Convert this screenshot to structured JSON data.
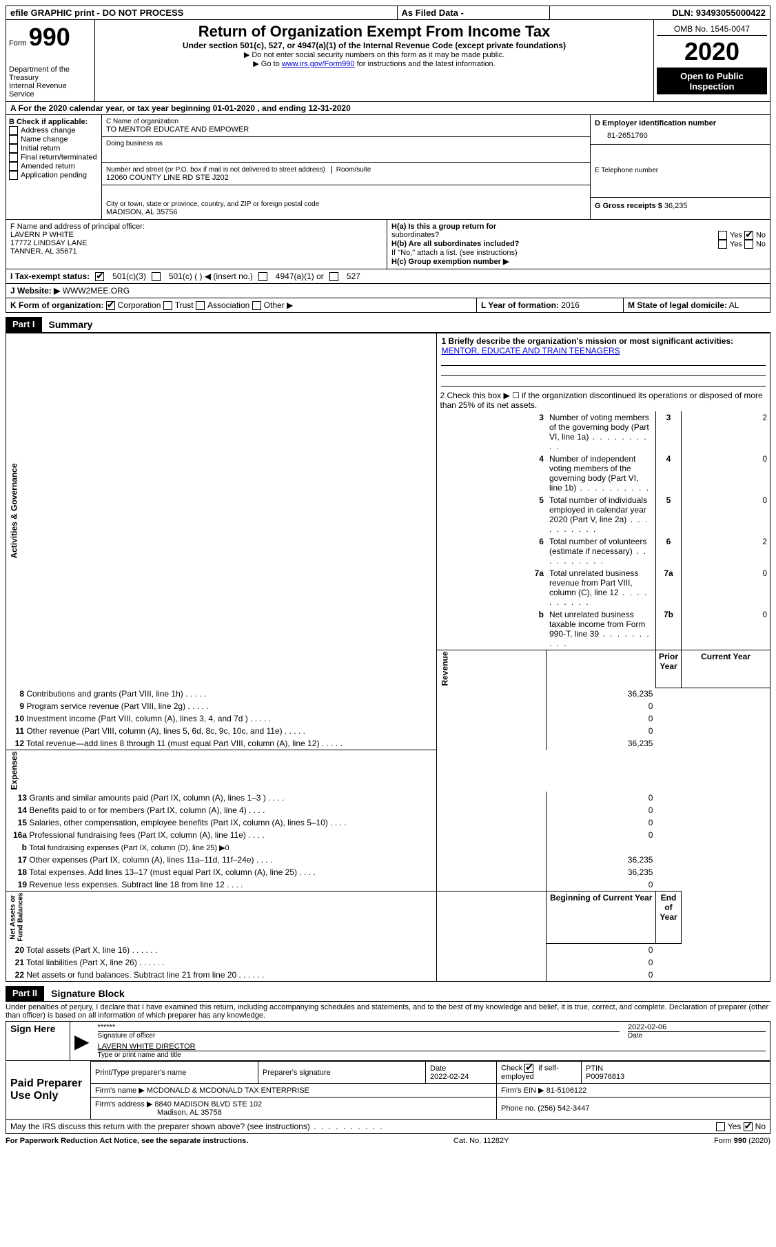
{
  "topbar": {
    "efile": "efile GRAPHIC print - DO NOT PROCESS",
    "asfiled": "As Filed Data -",
    "dln_label": "DLN:",
    "dln": "93493055000422"
  },
  "header": {
    "form_word": "Form",
    "form_num": "990",
    "dept1": "Department of the Treasury",
    "dept2": "Internal Revenue Service",
    "title": "Return of Organization Exempt From Income Tax",
    "subtitle": "Under section 501(c), 527, or 4947(a)(1) of the Internal Revenue Code (except private foundations)",
    "instr1": "▶ Do not enter social security numbers on this form as it may be made public.",
    "instr2a": "▶ Go to ",
    "instr2_link": "www.irs.gov/Form990",
    "instr2b": " for instructions and the latest information.",
    "omb": "OMB No. 1545-0047",
    "year": "2020",
    "open1": "Open to Public",
    "open2": "Inspection"
  },
  "rowA": "A   For the 2020 calendar year, or tax year beginning 01-01-2020   , and ending 12-31-2020",
  "boxB": {
    "title": "B Check if applicable:",
    "opts": [
      "Address change",
      "Name change",
      "Initial return",
      "Final return/terminated",
      "Amended return",
      "Application pending"
    ]
  },
  "boxC": {
    "lbl_name": "C Name of organization",
    "org": "TO MENTOR EDUCATE AND EMPOWER",
    "lbl_dba": "Doing business as",
    "lbl_street": "Number and street (or P.O. box if mail is not delivered to street address)",
    "lbl_room": "Room/suite",
    "street": "12060 COUNTY LINE RD STE J202",
    "lbl_city": "City or town, state or province, country, and ZIP or foreign postal code",
    "city": "MADISON, AL  35756"
  },
  "boxD": {
    "lbl": "D Employer identification number",
    "val": "81-2651760"
  },
  "boxE": {
    "lbl": "E Telephone number"
  },
  "boxG": {
    "lbl": "G Gross receipts $",
    "val": "36,235"
  },
  "boxF": {
    "lbl": "F   Name and address of principal officer:",
    "name": "LAVERN P WHITE",
    "addr1": "17772 LINDSAY LANE",
    "addr2": "TANNER, AL  35671"
  },
  "boxH": {
    "a_lbl": "H(a)  Is this a group return for",
    "a_lbl2": "subordinates?",
    "b_lbl": "H(b)  Are all subordinates included?",
    "b_note": "If \"No,\" attach a list. (see instructions)",
    "c_lbl": "H(c)  Group exemption number ▶",
    "yes": "Yes",
    "no": "No"
  },
  "rowI": {
    "lbl": "I   Tax-exempt status:",
    "o1": "501(c)(3)",
    "o2": "501(c) (   ) ◀ (insert no.)",
    "o3": "4947(a)(1) or",
    "o4": "527"
  },
  "rowJ": {
    "lbl": "J   Website: ▶",
    "val": "WWW2MEE.ORG"
  },
  "rowK": {
    "lbl": "K Form of organization:",
    "o1": "Corporation",
    "o2": "Trust",
    "o3": "Association",
    "o4": "Other ▶",
    "L_lbl": "L Year of formation:",
    "L_val": "2016",
    "M_lbl": "M State of legal domicile:",
    "M_val": "AL"
  },
  "partI": {
    "lbl": "Part I",
    "title": "Summary"
  },
  "summary": {
    "vtabs": {
      "gov": "Activities & Governance",
      "rev": "Revenue",
      "exp": "Expenses",
      "net": "Net Assets or\nFund Balances"
    },
    "line1_lbl": "1  Briefly describe the organization's mission or most significant activities:",
    "line1_val": "MENTOR, EDUCATE AND TRAIN TEENAGERS",
    "line2": "2   Check this box ▶ ☐  if the organization discontinued its operations or disposed of more than 25% of its net assets.",
    "rows_gov": [
      {
        "n": "3",
        "t": "Number of voting members of the governing body (Part VI, line 1a)",
        "box": "3",
        "v": "2"
      },
      {
        "n": "4",
        "t": "Number of independent voting members of the governing body (Part VI, line 1b)",
        "box": "4",
        "v": "0"
      },
      {
        "n": "5",
        "t": "Total number of individuals employed in calendar year 2020 (Part V, line 2a)",
        "box": "5",
        "v": "0"
      },
      {
        "n": "6",
        "t": "Total number of volunteers (estimate if necessary)",
        "box": "6",
        "v": "2"
      },
      {
        "n": "7a",
        "t": "Total unrelated business revenue from Part VIII, column (C), line 12",
        "box": "7a",
        "v": "0"
      },
      {
        "n": "b",
        "t": "Net unrelated business taxable income from Form 990-T, line 39",
        "box": "7b",
        "v": "0"
      }
    ],
    "col_hdrs": {
      "prior": "Prior Year",
      "current": "Current Year",
      "beg": "Beginning of Current Year",
      "end": "End of Year"
    },
    "rows_rev": [
      {
        "n": "8",
        "t": "Contributions and grants (Part VIII, line 1h)",
        "p": "",
        "c": "36,235"
      },
      {
        "n": "9",
        "t": "Program service revenue (Part VIII, line 2g)",
        "p": "",
        "c": "0"
      },
      {
        "n": "10",
        "t": "Investment income (Part VIII, column (A), lines 3, 4, and 7d )",
        "p": "",
        "c": "0"
      },
      {
        "n": "11",
        "t": "Other revenue (Part VIII, column (A), lines 5, 6d, 8c, 9c, 10c, and 11e)",
        "p": "",
        "c": "0"
      },
      {
        "n": "12",
        "t": "Total revenue—add lines 8 through 11 (must equal Part VIII, column (A), line 12)",
        "p": "",
        "c": "36,235"
      }
    ],
    "rows_exp": [
      {
        "n": "13",
        "t": "Grants and similar amounts paid (Part IX, column (A), lines 1–3 )",
        "p": "",
        "c": "0"
      },
      {
        "n": "14",
        "t": "Benefits paid to or for members (Part IX, column (A), line 4)",
        "p": "",
        "c": "0"
      },
      {
        "n": "15",
        "t": "Salaries, other compensation, employee benefits (Part IX, column (A), lines 5–10)",
        "p": "",
        "c": "0"
      },
      {
        "n": "16a",
        "t": "Professional fundraising fees (Part IX, column (A), line 11e)",
        "p": "",
        "c": "0"
      },
      {
        "n": "b",
        "t": "Total fundraising expenses (Part IX, column (D), line 25) ▶0",
        "p": "shaded",
        "c": "shaded"
      },
      {
        "n": "17",
        "t": "Other expenses (Part IX, column (A), lines 11a–11d, 11f–24e)",
        "p": "",
        "c": "36,235"
      },
      {
        "n": "18",
        "t": "Total expenses. Add lines 13–17 (must equal Part IX, column (A), line 25)",
        "p": "",
        "c": "36,235"
      },
      {
        "n": "19",
        "t": "Revenue less expenses. Subtract line 18 from line 12",
        "p": "",
        "c": "0"
      }
    ],
    "rows_net": [
      {
        "n": "20",
        "t": "Total assets (Part X, line 16)",
        "p": "",
        "c": "0"
      },
      {
        "n": "21",
        "t": "Total liabilities (Part X, line 26)",
        "p": "",
        "c": "0"
      },
      {
        "n": "22",
        "t": "Net assets or fund balances. Subtract line 21 from line 20",
        "p": "",
        "c": "0"
      }
    ]
  },
  "partII": {
    "lbl": "Part II",
    "title": "Signature Block"
  },
  "perjury": "Under penalties of perjury, I declare that I have examined this return, including accompanying schedules and statements, and to the best of my knowledge and belief, it is true, correct, and complete. Declaration of preparer (other than officer) is based on all information of which preparer has any knowledge.",
  "sign": {
    "left": "Sign Here",
    "stars": "******",
    "sig_lbl": "Signature of officer",
    "date": "2022-02-06",
    "date_lbl": "Date",
    "name": "LAVERN WHITE  DIRECTOR",
    "name_lbl": "Type or print name and title"
  },
  "prep": {
    "left": "Paid Preparer Use Only",
    "h1": "Print/Type preparer's name",
    "h2": "Preparer's signature",
    "h3": "Date",
    "date": "2022-02-24",
    "h4a": "Check",
    "h4b": "if self-employed",
    "h5": "PTIN",
    "ptin": "P00976813",
    "firm_lbl": "Firm's name    ▶",
    "firm": "MCDONALD & MCDONALD TAX ENTERPRISE",
    "ein_lbl": "Firm's EIN ▶",
    "ein": "81-5106122",
    "addr_lbl": "Firm's address ▶",
    "addr1": "8840 MADISON BLVD STE 102",
    "addr2": "Madison, AL  35758",
    "phone_lbl": "Phone no.",
    "phone": "(256) 542-3447"
  },
  "bottom": {
    "discuss": "May the IRS discuss this return with the preparer shown above? (see instructions)",
    "yes": "Yes",
    "no": "No",
    "paperwork": "For Paperwork Reduction Act Notice, see the separate instructions.",
    "cat": "Cat. No. 11282Y",
    "form": "Form 990 (2020)"
  }
}
